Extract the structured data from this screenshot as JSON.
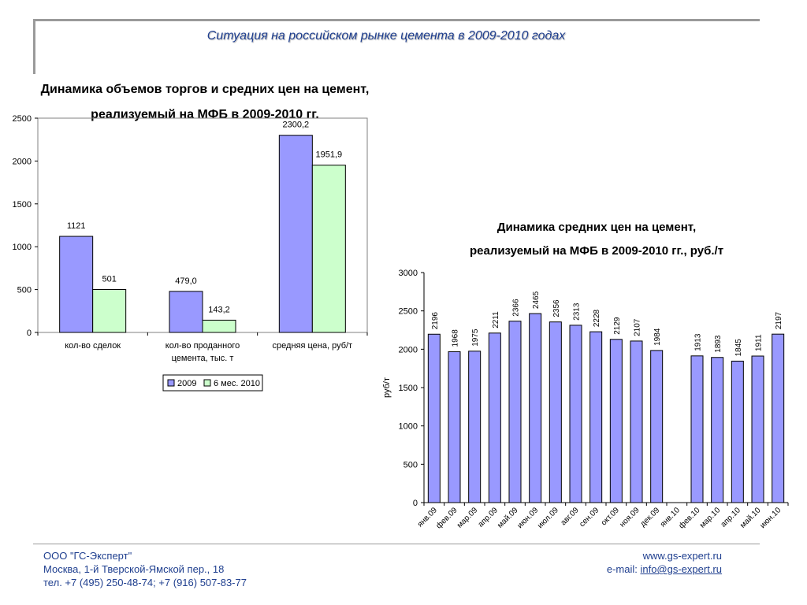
{
  "slide": {
    "title": "Ситуация на российском рынке цемента в 2009-2010 годах"
  },
  "colors": {
    "series_2009": "#9999ff",
    "series_2010": "#ccffcc",
    "accent_text": "#1f3f8f"
  },
  "chart_data": [
    {
      "type": "bar",
      "title_line1": "Динамика объемов торгов и средних цен на цемент,",
      "title_line2": "реализуемый на МФБ в 2009-2010 гг.",
      "categories": [
        "кол-во сделок",
        "кол-во проданного цемента, тыс. т",
        "средняя цена, руб/т"
      ],
      "category_lines": [
        [
          "кол-во сделок"
        ],
        [
          "кол-во проданного",
          "цемента, тыс. т"
        ],
        [
          "средняя цена, руб/т"
        ]
      ],
      "series": [
        {
          "name": "2009",
          "values": [
            1121,
            479.0,
            2300.2
          ],
          "labels": [
            "1121",
            "479,0",
            "2300,2"
          ]
        },
        {
          "name": "6 мес. 2010",
          "values": [
            501,
            143.2,
            1951.9
          ],
          "labels": [
            "501",
            "143,2",
            "1951,9"
          ]
        }
      ],
      "ylim": [
        0,
        2500
      ],
      "yticks": [
        0,
        500,
        1000,
        1500,
        2000,
        2500
      ],
      "legend": "bottom-center",
      "grid": false
    },
    {
      "type": "bar",
      "title_line1": "Динамика средних цен на цемент,",
      "title_line2": "реализуемый на МФБ в 2009-2010 гг., руб./т",
      "ylabel": "руб/т",
      "categories": [
        "янв.09",
        "фев.09",
        "мар.09",
        "апр.09",
        "май.09",
        "июн.09",
        "июл.09",
        "авг.09",
        "сен.09",
        "окт.09",
        "ноя.09",
        "дек.09",
        "янв.10",
        "фев.10",
        "мар.10",
        "апр.10",
        "май.10",
        "июн.10"
      ],
      "values": [
        2196,
        1968,
        1975,
        2211,
        2366,
        2465,
        2356,
        2313,
        2228,
        2129,
        2107,
        1984,
        null,
        1913,
        1893,
        1845,
        1911,
        2197
      ],
      "ylim": [
        0,
        3000
      ],
      "yticks": [
        0,
        500,
        1000,
        1500,
        2000,
        2500,
        3000
      ],
      "legend": "none",
      "grid": false
    }
  ],
  "footer": {
    "company": "ООО \"ГС-Эксперт\"",
    "address": "Москва, 1-й Тверской-Ямской пер., 18",
    "phones": "тел. +7 (495) 250-48-74; +7 (916) 507-83-77",
    "website": "www.gs-expert.ru",
    "email_label": "e-mail: ",
    "email": "info@gs-expert.ru"
  }
}
